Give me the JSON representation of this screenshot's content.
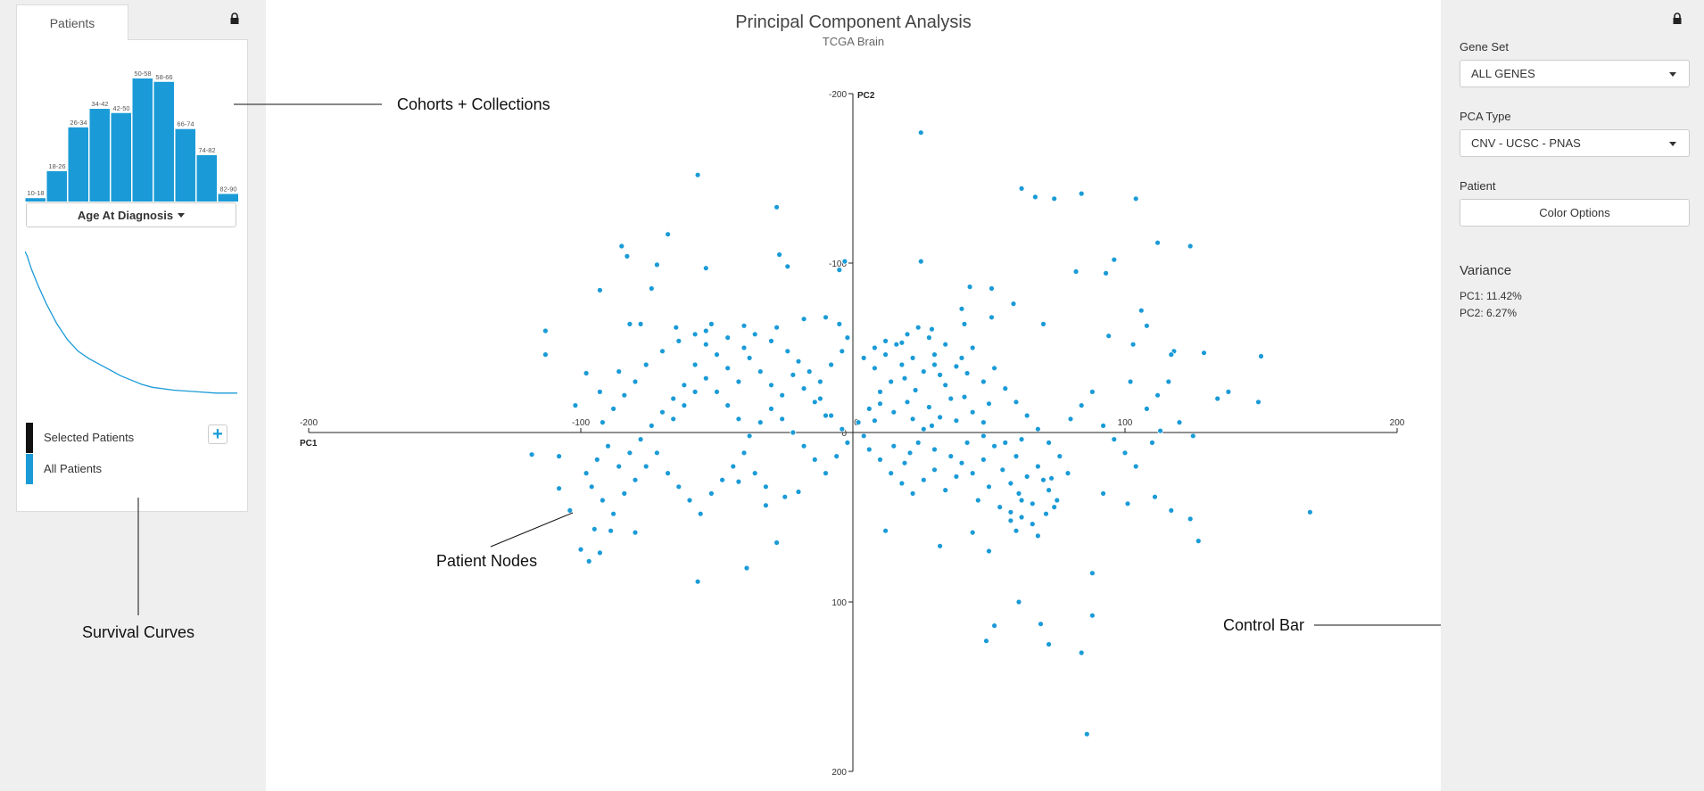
{
  "left_panel": {
    "tab_label": "Patients",
    "lock_icon": "lock-icon",
    "histogram": {
      "type": "bar",
      "categories": [
        "10-18",
        "18-26",
        "26-34",
        "34-42",
        "42-50",
        "50-58",
        "58-66",
        "66-74",
        "74-82",
        "82-90"
      ],
      "values": [
        4,
        36,
        88,
        110,
        105,
        146,
        142,
        86,
        55,
        9
      ],
      "dropdown_label": "Age At Diagnosis"
    },
    "survival_curve": {
      "type": "line",
      "x": [
        0,
        0.01,
        0.03,
        0.06,
        0.1,
        0.15,
        0.2,
        0.25,
        0.3,
        0.35,
        0.4,
        0.45,
        0.5,
        0.55,
        0.6,
        0.7,
        0.8,
        0.9,
        1.0
      ],
      "y": [
        1.0,
        0.97,
        0.88,
        0.77,
        0.64,
        0.5,
        0.39,
        0.31,
        0.26,
        0.22,
        0.18,
        0.14,
        0.11,
        0.08,
        0.06,
        0.04,
        0.03,
        0.02,
        0.02
      ]
    },
    "legend": {
      "selected_label": "Selected Patients",
      "all_label": "All Patients",
      "selected_color": "#111111",
      "all_color": "#1a9bd7",
      "add_label": "+"
    }
  },
  "plot": {
    "title": "Principal Component Analysis",
    "subtitle": "TCGA Brain",
    "chart_data": {
      "type": "scatter",
      "xlabel": "PC1",
      "ylabel": "PC2",
      "xlim": [
        -200,
        200
      ],
      "ylim": [
        -200,
        200
      ],
      "x_ticks": [
        "-200",
        "-100",
        "0",
        "100",
        "200"
      ],
      "y_ticks": [
        "-200",
        "-100",
        "0",
        "100",
        "200"
      ],
      "point_color": "#1a9bd7",
      "points": [
        [
          -57,
          -152
        ],
        [
          -28,
          -133
        ],
        [
          25,
          -177
        ],
        [
          62,
          -144
        ],
        [
          67,
          -139
        ],
        [
          74,
          -138
        ],
        [
          84,
          -141
        ],
        [
          104,
          -138
        ],
        [
          112,
          -112
        ],
        [
          124,
          -110
        ],
        [
          -113,
          -60
        ],
        [
          -113,
          -46
        ],
        [
          -85,
          -110
        ],
        [
          -83,
          -104
        ],
        [
          -68,
          -117
        ],
        [
          -54,
          -97
        ],
        [
          -72,
          -99
        ],
        [
          -93,
          -84
        ],
        [
          -24,
          -98
        ],
        [
          -27,
          -105
        ],
        [
          -5,
          -96
        ],
        [
          -3,
          -101
        ],
        [
          25,
          -101
        ],
        [
          43,
          -86
        ],
        [
          51,
          -85
        ],
        [
          59,
          -76
        ],
        [
          70,
          -64
        ],
        [
          82,
          -95
        ],
        [
          93,
          -94
        ],
        [
          96,
          -102
        ],
        [
          108,
          -63
        ],
        [
          106,
          -72
        ],
        [
          103,
          -52
        ],
        [
          94,
          -57
        ],
        [
          118,
          -48
        ],
        [
          129,
          -47
        ],
        [
          150,
          -45
        ],
        [
          138,
          -24
        ],
        [
          134,
          -20
        ],
        [
          117,
          -46
        ],
        [
          -98,
          -35
        ],
        [
          -93,
          -24
        ],
        [
          -102,
          -16
        ],
        [
          -82,
          -64
        ],
        [
          -78,
          -64
        ],
        [
          -74,
          -85
        ],
        [
          -65,
          -62
        ],
        [
          -54,
          -60
        ],
        [
          -40,
          -63
        ],
        [
          -28,
          -62
        ],
        [
          -18,
          -67
        ],
        [
          -10,
          -68
        ],
        [
          -5,
          -64
        ],
        [
          -2,
          -56
        ],
        [
          12,
          -54
        ],
        [
          18,
          -53
        ],
        [
          29,
          -61
        ],
        [
          41,
          -64
        ],
        [
          40,
          -73
        ],
        [
          51,
          -68
        ],
        [
          102,
          -30
        ],
        [
          125,
          2
        ],
        [
          110,
          6
        ],
        [
          113,
          -1
        ],
        [
          149,
          -18
        ],
        [
          92,
          36
        ],
        [
          101,
          42
        ],
        [
          111,
          38
        ],
        [
          117,
          46
        ],
        [
          124,
          51
        ],
        [
          -108,
          14
        ],
        [
          -118,
          13
        ],
        [
          -108,
          33
        ],
        [
          -104,
          46
        ],
        [
          -95,
          57
        ],
        [
          -89,
          58
        ],
        [
          -80,
          59
        ],
        [
          -100,
          69
        ],
        [
          -93,
          71
        ],
        [
          -97,
          76
        ],
        [
          -57,
          88
        ],
        [
          -39,
          80
        ],
        [
          -28,
          65
        ],
        [
          -42,
          29
        ],
        [
          -25,
          38
        ],
        [
          -32,
          43
        ],
        [
          -20,
          35
        ],
        [
          12,
          58
        ],
        [
          32,
          67
        ],
        [
          50,
          70
        ],
        [
          52,
          114
        ],
        [
          49,
          123
        ],
        [
          61,
          100
        ],
        [
          69,
          113
        ],
        [
          72,
          125
        ],
        [
          88,
          83
        ],
        [
          88,
          108
        ],
        [
          84,
          130
        ],
        [
          127,
          64
        ],
        [
          168,
          47
        ],
        [
          86,
          178
        ],
        [
          60,
          58
        ],
        [
          58,
          47
        ],
        [
          62,
          50
        ],
        [
          71,
          48
        ],
        [
          75,
          40
        ],
        [
          68,
          61
        ],
        [
          44,
          59
        ],
        [
          79,
          24
        ],
        [
          73,
          27
        ],
        [
          30,
          -40
        ],
        [
          38,
          -39
        ],
        [
          42,
          -35
        ],
        [
          34,
          -28
        ],
        [
          41,
          -21
        ],
        [
          44,
          -12
        ],
        [
          48,
          -6
        ],
        [
          50,
          -17
        ],
        [
          38,
          -7
        ],
        [
          29,
          -4
        ],
        [
          20,
          -18
        ],
        [
          23,
          -25
        ],
        [
          19,
          -32
        ],
        [
          15,
          -12
        ],
        [
          10,
          -17
        ],
        [
          8,
          -7
        ],
        [
          22,
          -8
        ],
        [
          28,
          -15
        ],
        [
          32,
          -9
        ],
        [
          26,
          -2
        ],
        [
          15,
          8
        ],
        [
          21,
          12
        ],
        [
          19,
          18
        ],
        [
          24,
          6
        ],
        [
          30,
          10
        ],
        [
          36,
          14
        ],
        [
          40,
          18
        ],
        [
          44,
          24
        ],
        [
          48,
          16
        ],
        [
          52,
          8
        ],
        [
          55,
          22
        ],
        [
          58,
          30
        ],
        [
          61,
          36
        ],
        [
          64,
          26
        ],
        [
          66,
          42
        ],
        [
          50,
          32
        ],
        [
          46,
          40
        ],
        [
          54,
          44
        ],
        [
          58,
          52
        ],
        [
          62,
          40
        ],
        [
          68,
          20
        ],
        [
          70,
          28
        ],
        [
          72,
          34
        ],
        [
          74,
          44
        ],
        [
          66,
          54
        ],
        [
          60,
          14
        ],
        [
          56,
          6
        ],
        [
          62,
          4
        ],
        [
          48,
          2
        ],
        [
          42,
          6
        ],
        [
          38,
          26
        ],
        [
          34,
          34
        ],
        [
          30,
          22
        ],
        [
          26,
          28
        ],
        [
          22,
          36
        ],
        [
          18,
          30
        ],
        [
          14,
          24
        ],
        [
          10,
          16
        ],
        [
          6,
          10
        ],
        [
          4,
          2
        ],
        [
          2,
          -6
        ],
        [
          6,
          -14
        ],
        [
          10,
          -24
        ],
        [
          14,
          -30
        ],
        [
          18,
          -40
        ],
        [
          22,
          -44
        ],
        [
          26,
          -36
        ],
        [
          30,
          -46
        ],
        [
          34,
          -52
        ],
        [
          8,
          -38
        ],
        [
          -10,
          -10
        ],
        [
          -14,
          -18
        ],
        [
          -18,
          -26
        ],
        [
          -22,
          -34
        ],
        [
          -26,
          -22
        ],
        [
          -30,
          -14
        ],
        [
          -34,
          -6
        ],
        [
          -38,
          2
        ],
        [
          -42,
          -8
        ],
        [
          -46,
          -16
        ],
        [
          -50,
          -24
        ],
        [
          -54,
          -32
        ],
        [
          -58,
          -40
        ],
        [
          -62,
          -28
        ],
        [
          -66,
          -20
        ],
        [
          -70,
          -12
        ],
        [
          -74,
          -4
        ],
        [
          -78,
          4
        ],
        [
          -82,
          12
        ],
        [
          -86,
          20
        ],
        [
          -30,
          -28
        ],
        [
          -34,
          -36
        ],
        [
          -38,
          -44
        ],
        [
          -42,
          -30
        ],
        [
          -46,
          -38
        ],
        [
          -50,
          -46
        ],
        [
          -54,
          -52
        ],
        [
          -58,
          -24
        ],
        [
          -62,
          -16
        ],
        [
          -66,
          -8
        ],
        [
          -26,
          -8
        ],
        [
          -22,
          0
        ],
        [
          -18,
          8
        ],
        [
          -14,
          16
        ],
        [
          -10,
          24
        ],
        [
          -6,
          14
        ],
        [
          -2,
          6
        ],
        [
          -4,
          -2
        ],
        [
          -8,
          -10
        ],
        [
          -12,
          -20
        ],
        [
          -90,
          8
        ],
        [
          -94,
          16
        ],
        [
          -98,
          24
        ],
        [
          -96,
          32
        ],
        [
          -92,
          40
        ],
        [
          -88,
          48
        ],
        [
          -84,
          36
        ],
        [
          -80,
          28
        ],
        [
          -76,
          20
        ],
        [
          -72,
          12
        ],
        [
          -68,
          24
        ],
        [
          -64,
          32
        ],
        [
          -60,
          40
        ],
        [
          -56,
          48
        ],
        [
          -52,
          36
        ],
        [
          -48,
          28
        ],
        [
          -44,
          20
        ],
        [
          -40,
          12
        ],
        [
          -36,
          24
        ],
        [
          -32,
          32
        ],
        [
          -80,
          -30
        ],
        [
          -84,
          -22
        ],
        [
          -88,
          -14
        ],
        [
          -92,
          -6
        ],
        [
          -86,
          -36
        ],
        [
          -76,
          -40
        ],
        [
          -70,
          -48
        ],
        [
          -64,
          -54
        ],
        [
          -58,
          -58
        ],
        [
          -52,
          -64
        ],
        [
          -46,
          -56
        ],
        [
          -40,
          -50
        ],
        [
          -36,
          -58
        ],
        [
          -30,
          -54
        ],
        [
          -24,
          -48
        ],
        [
          -20,
          -42
        ],
        [
          -16,
          -36
        ],
        [
          -12,
          -30
        ],
        [
          -8,
          -40
        ],
        [
          -4,
          -48
        ],
        [
          4,
          -44
        ],
        [
          8,
          -50
        ],
        [
          12,
          -46
        ],
        [
          16,
          -52
        ],
        [
          20,
          -58
        ],
        [
          24,
          -62
        ],
        [
          28,
          -56
        ],
        [
          32,
          -34
        ],
        [
          36,
          -20
        ],
        [
          40,
          -44
        ],
        [
          44,
          -50
        ],
        [
          48,
          -30
        ],
        [
          52,
          -38
        ],
        [
          56,
          -26
        ],
        [
          60,
          -18
        ],
        [
          64,
          -10
        ],
        [
          68,
          -2
        ],
        [
          72,
          6
        ],
        [
          76,
          14
        ],
        [
          80,
          -8
        ],
        [
          84,
          -16
        ],
        [
          88,
          -24
        ],
        [
          92,
          -4
        ],
        [
          96,
          4
        ],
        [
          100,
          12
        ],
        [
          104,
          20
        ],
        [
          108,
          -14
        ],
        [
          112,
          -22
        ],
        [
          116,
          -30
        ],
        [
          120,
          -6
        ]
      ]
    }
  },
  "callouts": {
    "cohorts": "Cohorts + Collections",
    "survival": "Survival Curves",
    "nodes": "Patient Nodes",
    "control": "Control Bar"
  },
  "control_bar": {
    "lock_icon": "lock-icon",
    "gene_set_label": "Gene Set",
    "gene_set_value": "ALL GENES",
    "pca_type_label": "PCA Type",
    "pca_type_value": "CNV - UCSC - PNAS",
    "patient_label": "Patient",
    "color_options_label": "Color Options",
    "variance_title": "Variance",
    "variance_pc1": "PC1: 11.42%",
    "variance_pc2": "PC2: 6.27%"
  }
}
